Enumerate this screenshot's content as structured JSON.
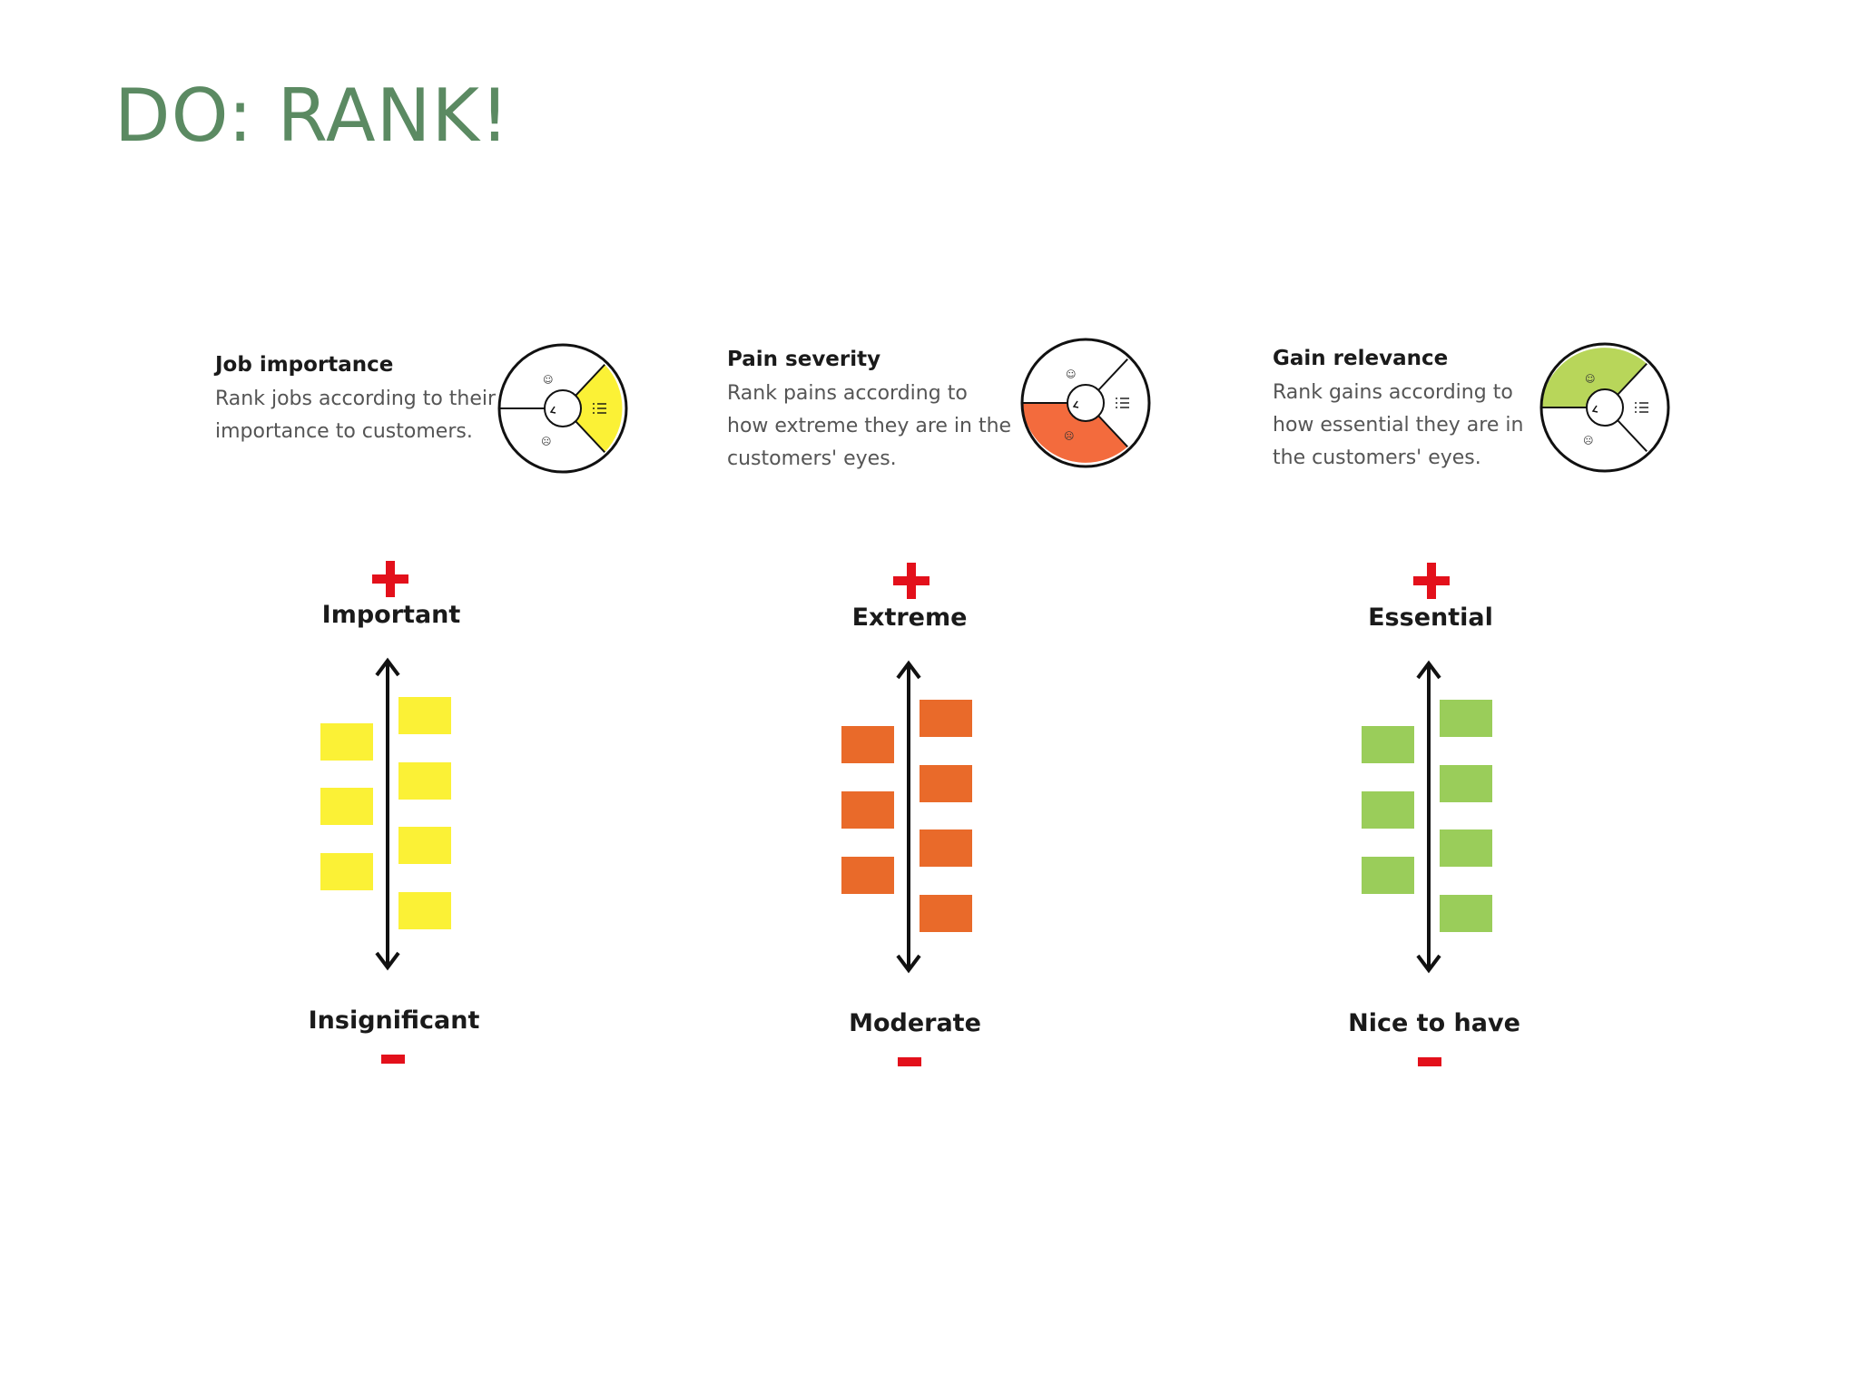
{
  "title": "DO: RANK!",
  "colors": {
    "title": "#5b8a62",
    "plus_minus": "#e3101b",
    "jobs": "#fbf136",
    "pains": "#e96a2a",
    "gains": "#9acd5a",
    "pains_wheel": "#f36b3d",
    "gains_wheel": "#b8d65a"
  },
  "panels": [
    {
      "id": "jobs",
      "heading": "Job importance",
      "text_lines": [
        "Rank jobs according to their",
        "importance to customers."
      ],
      "top_label": "Important",
      "bottom_label": "Insignificant",
      "highlight": "jobs",
      "icon": "value-proposition-canvas-wheel-icon"
    },
    {
      "id": "pains",
      "heading": "Pain severity",
      "text_lines": [
        "Rank pains according to",
        "how extreme they are in the",
        "customers' eyes."
      ],
      "top_label": "Extreme",
      "bottom_label": "Moderate",
      "highlight": "pains",
      "icon": "value-proposition-canvas-wheel-icon"
    },
    {
      "id": "gains",
      "heading": "Gain relevance",
      "text_lines": [
        "Rank gains according to",
        "how essential they are in",
        "the customers' eyes."
      ],
      "top_label": "Essential",
      "bottom_label": "Nice to have",
      "highlight": "gains",
      "icon": "value-proposition-canvas-wheel-icon"
    }
  ]
}
